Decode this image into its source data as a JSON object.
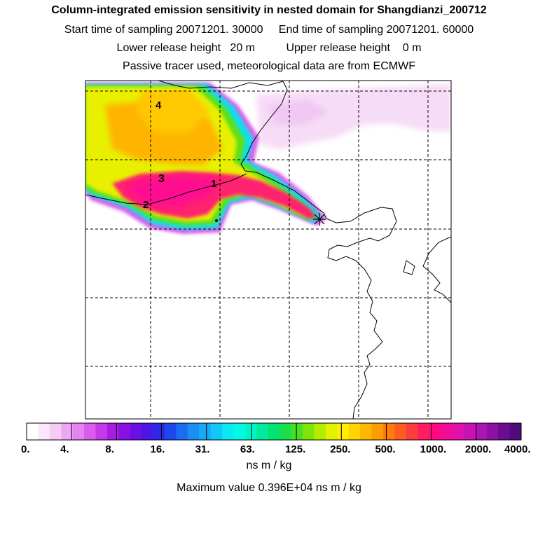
{
  "header": {
    "title": "Column-integrated emission sensitivity in nested domain for Shangdianzi_200712",
    "sampling_times": "Start time of sampling 20071201. 30000     End time of sampling 20071201. 60000",
    "release_heights": "Lower release height   20 m          Upper release height    0 m",
    "note": "Passive tracer used, meteorological data are from ECMWF"
  },
  "map": {
    "labels": [
      "1",
      "2",
      "3",
      "4"
    ],
    "receptor_marker": "star-marker"
  },
  "colorbar": {
    "tick_labels": [
      "0.",
      "4.",
      "8.",
      "16.",
      "31.",
      "63.",
      "125.",
      "250.",
      "500.",
      "1000.",
      "2000.",
      "4000."
    ],
    "colors": [
      "#ffffff",
      "#fbe6fb",
      "#f6ccf7",
      "#eea8f3",
      "#e683f0",
      "#d95cec",
      "#c43ae8",
      "#a91ce4",
      "#8a10e4",
      "#6a10e6",
      "#4a16e8",
      "#2c28ea",
      "#1e48ee",
      "#1c6cf2",
      "#1a8ef6",
      "#18aaf8",
      "#12c8f8",
      "#0ae8f4",
      "#04f8e4",
      "#00f4c4",
      "#00ec9c",
      "#00e474",
      "#18e04c",
      "#48e024",
      "#80e40c",
      "#b4ec00",
      "#e0f400",
      "#fff000",
      "#ffd400",
      "#ffb800",
      "#ff9c00",
      "#ff7c0c",
      "#ff5c20",
      "#ff3c3c",
      "#ff1c60",
      "#ff0880",
      "#f40c98",
      "#e010a8",
      "#c814b4",
      "#ac14b4",
      "#8c10a4",
      "#6c0c90",
      "#500a7c"
    ],
    "units": "ns m / kg",
    "max_value": "Maximum value  0.396E+04 ns m / kg"
  }
}
